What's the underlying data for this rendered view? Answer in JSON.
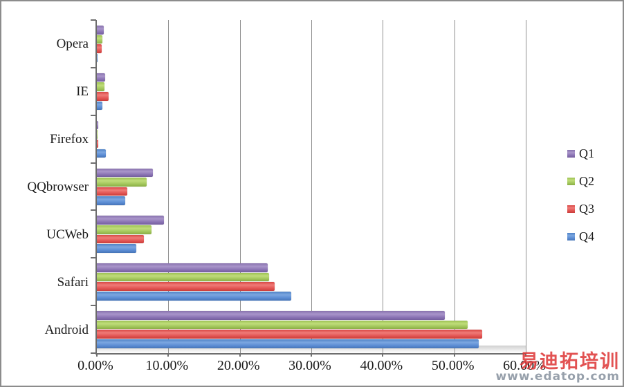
{
  "legend": {
    "items": [
      {
        "label": "Q1",
        "color": "#8169a8"
      },
      {
        "label": "Q2",
        "color": "#9dc054"
      },
      {
        "label": "Q3",
        "color": "#d94f4c"
      },
      {
        "label": "Q4",
        "color": "#5488cf"
      }
    ]
  },
  "watermark": {
    "line1": "易迪拓培训",
    "line2": "www.edatop.com",
    "color1": "#de3a3a",
    "color2": "#919ba7"
  },
  "chart_data": {
    "type": "bar",
    "orientation": "horizontal",
    "title": "",
    "xlabel": "",
    "ylabel": "",
    "categories": [
      "Opera",
      "IE",
      "Firefox",
      "QQbrowser",
      "UCWeb",
      "Safari",
      "Android"
    ],
    "series": [
      {
        "name": "Q1",
        "color": "#8169a8",
        "values": [
          1.0,
          1.2,
          0.2,
          7.8,
          9.4,
          23.9,
          48.7
        ]
      },
      {
        "name": "Q2",
        "color": "#9dc054",
        "values": [
          0.8,
          1.1,
          0.1,
          7.0,
          7.6,
          24.1,
          51.9
        ]
      },
      {
        "name": "Q3",
        "color": "#d94f4c",
        "values": [
          0.7,
          1.6,
          0.2,
          4.3,
          6.6,
          24.9,
          53.9
        ]
      },
      {
        "name": "Q4",
        "color": "#5488cf",
        "values": [
          0.1,
          0.8,
          1.3,
          4.0,
          5.5,
          27.2,
          53.4
        ]
      }
    ],
    "x_tick_labels": [
      "0.00%",
      "10.00%",
      "20.00%",
      "30.00%",
      "40.00%",
      "50.00%",
      "60.00%"
    ],
    "xlim": [
      0,
      60
    ],
    "grid": true,
    "legend_position": "right",
    "bar_colors_note": "series order top-to-bottom within each category: Q1 purple, Q2 green, Q3 red, Q4 blue"
  }
}
